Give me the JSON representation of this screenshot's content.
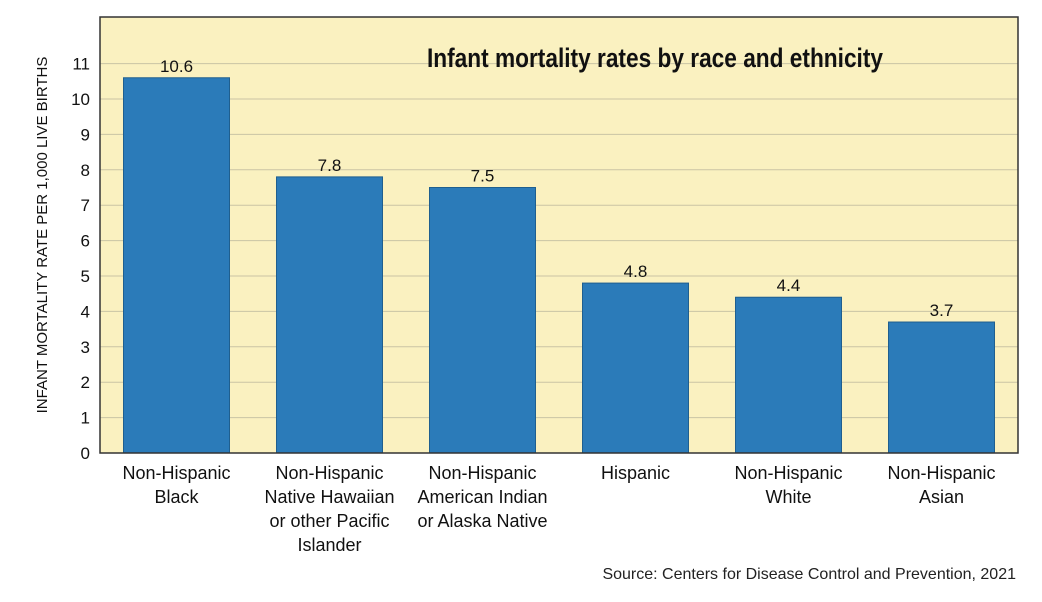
{
  "chart_data": {
    "type": "bar",
    "title": "Infant mortality rates by race and ethnicity",
    "ylabel": "INFANT MORTALITY RATE PER 1,000 LIVE BIRTHS",
    "xlabel": "",
    "ylim": [
      0,
      11
    ],
    "yticks": [
      0,
      1,
      2,
      3,
      4,
      5,
      6,
      7,
      8,
      9,
      10,
      11
    ],
    "grid": true,
    "categories": [
      [
        "Non-Hispanic",
        "Black"
      ],
      [
        "Non-Hispanic",
        "Native Hawaiian",
        "or other Pacific",
        "Islander"
      ],
      [
        "Non-Hispanic",
        "American Indian",
        "or Alaska Native"
      ],
      [
        "Hispanic"
      ],
      [
        "Non-Hispanic",
        "White"
      ],
      [
        "Non-Hispanic",
        "Asian"
      ]
    ],
    "values": [
      10.6,
      7.8,
      7.5,
      4.8,
      4.4,
      3.7
    ],
    "data_labels": [
      "10.6",
      "7.8",
      "7.5",
      "4.8",
      "4.4",
      "3.7"
    ],
    "colors": {
      "bar": "#2b7bb9",
      "bar_edge": "#1f5f8f",
      "plot_background": "#faf1c0",
      "grid": "#c9c4a4",
      "frame": "#333333"
    }
  },
  "source": "Source: Centers for Disease Control and Prevention, 2021"
}
